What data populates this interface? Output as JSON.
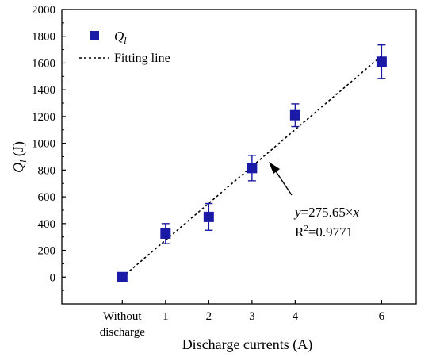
{
  "chart_data": {
    "type": "scatter",
    "xlabel": "Discharge currents (A)",
    "ylabel_main": "Q",
    "ylabel_sub": "l",
    "ylabel_unit": " (J)",
    "x_tick_labels": [
      {
        "x": 0,
        "lines": [
          "Without",
          "discharge"
        ]
      },
      {
        "x": 1,
        "lines": [
          "1"
        ]
      },
      {
        "x": 2,
        "lines": [
          "2"
        ]
      },
      {
        "x": 3,
        "lines": [
          "3"
        ]
      },
      {
        "x": 4,
        "lines": [
          "4"
        ]
      },
      {
        "x": 6,
        "lines": [
          "6"
        ]
      }
    ],
    "xlim": [
      -1.4,
      6.8
    ],
    "ylim": [
      -200,
      2000
    ],
    "y_ticks": [
      0,
      200,
      400,
      600,
      800,
      1000,
      1200,
      1400,
      1600,
      1800,
      2000
    ],
    "series": [
      {
        "name_main": "Q",
        "name_sub": "l",
        "color": "#1a1aa6",
        "marker": "square",
        "points": [
          {
            "x": 0,
            "y": 0,
            "err_low": 0,
            "err_high": 0
          },
          {
            "x": 1,
            "y": 325,
            "err_low": 75,
            "err_high": 75
          },
          {
            "x": 2,
            "y": 450,
            "err_low": 100,
            "err_high": 100
          },
          {
            "x": 3,
            "y": 815,
            "err_low": 95,
            "err_high": 95
          },
          {
            "x": 4,
            "y": 1210,
            "err_low": 85,
            "err_high": 85
          },
          {
            "x": 6,
            "y": 1610,
            "err_low": 125,
            "err_high": 125
          }
        ]
      }
    ],
    "fit": {
      "name": "Fitting line",
      "slope": 275.65,
      "x_range": [
        0,
        6
      ],
      "style": "dashed",
      "color": "#000000"
    },
    "annotation": {
      "equation_var": "y",
      "equation_rest": "=275.65×",
      "equation_x": "x",
      "r2_prefix": "R",
      "r2_sup": "2",
      "r2_value": "=0.9771"
    },
    "legend_position": "top-left",
    "grid": false
  }
}
